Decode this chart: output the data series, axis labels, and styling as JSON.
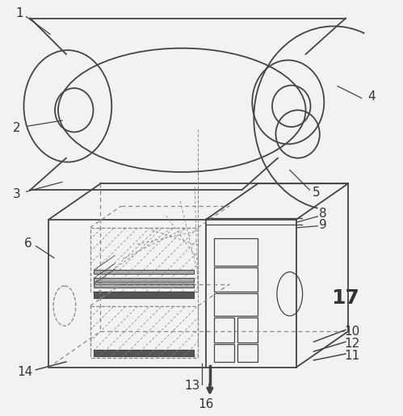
{
  "bg_color": "#f2f2f2",
  "line_color": "#444444",
  "dashed_color": "#888888",
  "label_color": "#333333",
  "figsize": [
    4.99,
    5.15
  ],
  "dpi": 100
}
